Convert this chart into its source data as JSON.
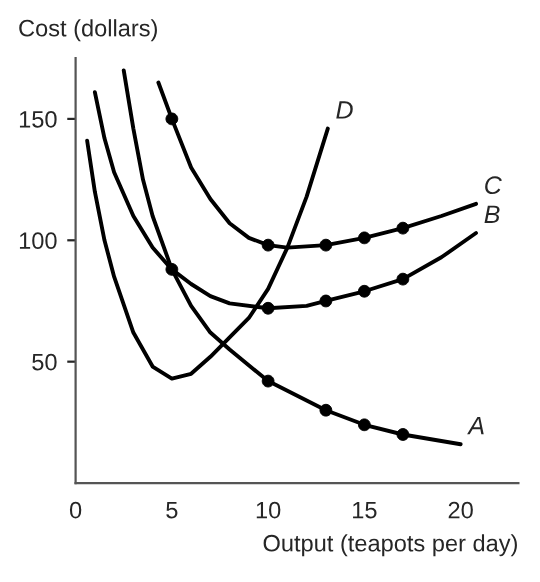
{
  "chart_data": {
    "type": "line",
    "xlabel": "Output (teapots per day)",
    "ylabel": "Cost (dollars)",
    "xlim": [
      0,
      23
    ],
    "ylim": [
      0,
      175
    ],
    "xticks": [
      0,
      5,
      10,
      15,
      20
    ],
    "yticks": [
      50,
      100,
      150
    ],
    "grid": false,
    "legend": false,
    "series": [
      {
        "name": "A",
        "color": "#000000",
        "x": [
          2.5,
          3,
          3.5,
          4,
          5,
          6,
          7,
          8,
          10,
          12,
          13,
          15,
          17,
          20
        ],
        "values": [
          170,
          146,
          125,
          110,
          88,
          73,
          62,
          55,
          42,
          34,
          30,
          24,
          20,
          16
        ]
      },
      {
        "name": "B",
        "color": "#000000",
        "x": [
          1,
          1.5,
          2,
          3,
          4,
          5,
          6,
          7,
          8,
          10,
          12,
          13,
          15,
          17,
          19,
          20.8
        ],
        "values": [
          161,
          142,
          128,
          110,
          97,
          88,
          82,
          77,
          74,
          72,
          73,
          75,
          79,
          84,
          93,
          103
        ]
      },
      {
        "name": "C",
        "color": "#000000",
        "x": [
          4.3,
          5,
          6,
          7,
          8,
          9,
          10,
          11,
          13,
          15,
          17,
          19,
          20.8
        ],
        "values": [
          165,
          150,
          130,
          117,
          107,
          101,
          98,
          97,
          98,
          101,
          105,
          110,
          115
        ]
      },
      {
        "name": "D",
        "color": "#000000",
        "x": [
          0.6,
          1,
          1.5,
          2,
          3,
          4,
          5,
          6,
          7,
          8,
          9,
          10,
          11,
          12,
          13.1
        ],
        "values": [
          141,
          120,
          100,
          85,
          62,
          48,
          43,
          45,
          52,
          60,
          68,
          80,
          97,
          118,
          146
        ]
      },
      {
        "type": "scatter",
        "color": "#000000",
        "marker": "circle",
        "x": [
          5,
          10,
          13,
          15,
          17
        ],
        "values": [
          88,
          42,
          30,
          24,
          20
        ]
      },
      {
        "type": "scatter",
        "color": "#000000",
        "marker": "circle",
        "x": [
          10,
          13,
          15,
          17
        ],
        "values": [
          72,
          75,
          79,
          84
        ]
      },
      {
        "type": "scatter",
        "color": "#000000",
        "marker": "circle",
        "x": [
          5,
          10,
          13,
          15,
          17
        ],
        "values": [
          150,
          98,
          98,
          101,
          105
        ]
      }
    ]
  }
}
